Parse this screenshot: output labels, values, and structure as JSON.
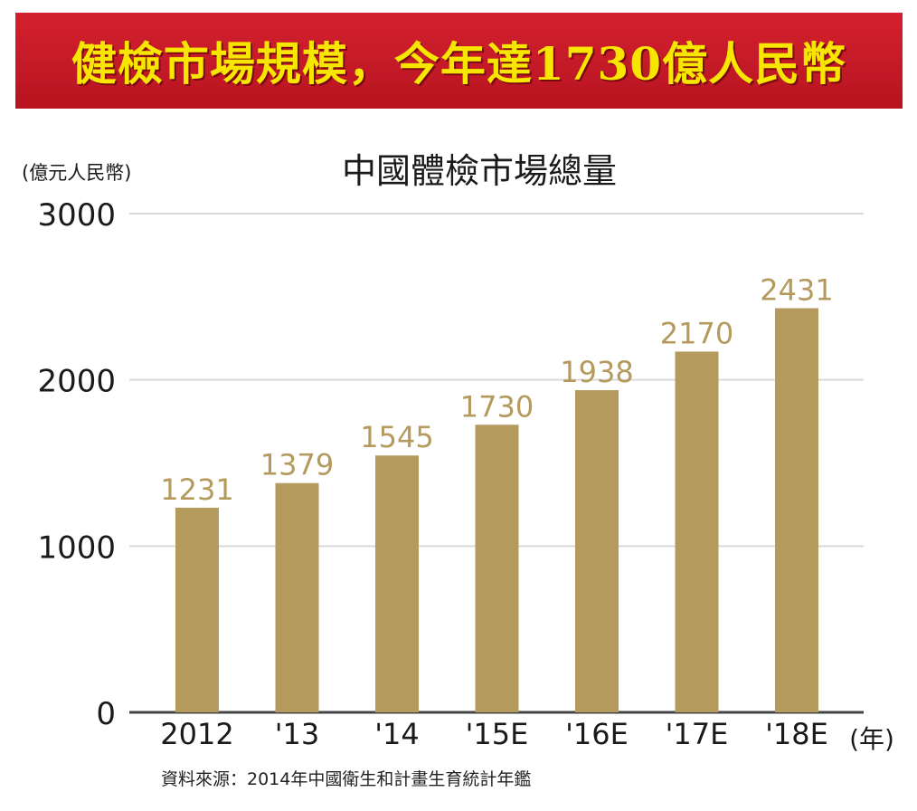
{
  "banner": {
    "title": "健檢市場規模，今年達1730億人民幣"
  },
  "chart_data": {
    "type": "bar",
    "title": "中國體檢市場總量",
    "ylabel": "(億元人民幣)",
    "xlabel": "(年)",
    "categories": [
      "2012",
      "'13",
      "'14",
      "'15E",
      "'16E",
      "'17E",
      "'18E"
    ],
    "values": [
      1231,
      1379,
      1545,
      1730,
      1938,
      2170,
      2431
    ],
    "ylim": [
      0,
      3000
    ],
    "yticks": [
      0,
      1000,
      2000,
      3000
    ],
    "grid": true,
    "bar_color": "#b59a5e",
    "grid_color": "#d9d9d9",
    "axis_color": "#444444"
  },
  "source": {
    "text": "資料來源：2014年中國衛生和計畫生育統計年鑑"
  }
}
